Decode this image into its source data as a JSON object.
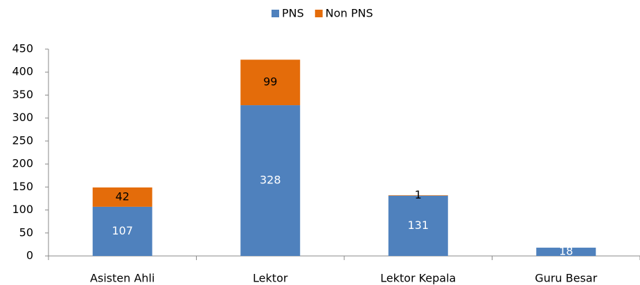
{
  "chart_data": {
    "type": "stacked_bar",
    "categories": [
      "Asisten Ahli",
      "Lektor",
      "Lektor Kepala",
      "Guru Besar"
    ],
    "series": [
      {
        "name": "PNS",
        "color": "#4f81bd",
        "values": [
          107,
          328,
          131,
          18
        ]
      },
      {
        "name": "Non PNS",
        "color": "#e46c0a",
        "values": [
          42,
          99,
          1,
          null
        ]
      }
    ],
    "ylim": [
      0,
      450
    ],
    "yticks": [
      0,
      50,
      100,
      150,
      200,
      250,
      300,
      350,
      400,
      450
    ],
    "grid": false,
    "legend": "top"
  }
}
